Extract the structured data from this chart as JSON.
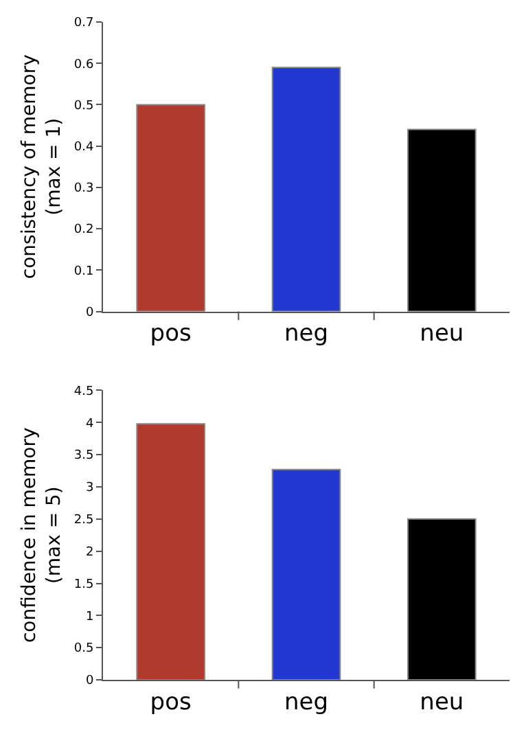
{
  "chart_data": [
    {
      "type": "bar",
      "ylabel": "consistency of memory\n(max = 1)",
      "categories": [
        "pos",
        "neg",
        "neu"
      ],
      "values": [
        0.5,
        0.59,
        0.44
      ],
      "colors": [
        "#b03a2e",
        "#2238d0",
        "#000000"
      ],
      "ylim": [
        0,
        0.7
      ],
      "yticks": [
        0,
        0.1,
        0.2,
        0.3,
        0.4,
        0.5,
        0.6,
        0.7
      ]
    },
    {
      "type": "bar",
      "ylabel": "confidence in memory\n(max = 5)",
      "categories": [
        "pos",
        "neg",
        "neu"
      ],
      "values": [
        3.98,
        3.27,
        2.5
      ],
      "colors": [
        "#b03a2e",
        "#2238d0",
        "#000000"
      ],
      "ylim": [
        0,
        4.5
      ],
      "yticks": [
        0,
        0.5,
        1,
        1.5,
        2,
        2.5,
        3,
        3.5,
        4,
        4.5
      ]
    }
  ]
}
